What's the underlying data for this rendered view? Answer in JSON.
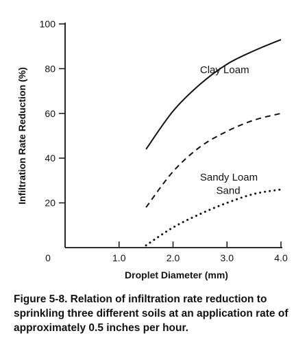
{
  "chart_data": {
    "type": "line",
    "xlabel": "Droplet Diameter (mm)",
    "ylabel": "Infiltration Rate Reduction (%)",
    "xlim": [
      0,
      4.0
    ],
    "ylim": [
      0,
      100
    ],
    "x_ticks": [
      {
        "value": 0,
        "label": "0"
      },
      {
        "value": 1.0,
        "label": "1.0"
      },
      {
        "value": 2.0,
        "label": "2.0"
      },
      {
        "value": 3.0,
        "label": "3.0"
      },
      {
        "value": 4.0,
        "label": "4.0"
      }
    ],
    "y_ticks": [
      {
        "value": 20,
        "label": "20"
      },
      {
        "value": 40,
        "label": "40"
      },
      {
        "value": 60,
        "label": "60"
      },
      {
        "value": 80,
        "label": "80"
      },
      {
        "value": 100,
        "label": "100"
      }
    ],
    "grid": false,
    "legend": "none",
    "series": [
      {
        "name": "Clay Loam",
        "style": "solid",
        "x": [
          1.5,
          2.0,
          2.5,
          3.0,
          3.5,
          4.0
        ],
        "y": [
          44,
          61,
          73,
          82,
          88,
          93
        ]
      },
      {
        "name": "Sandy Loam",
        "style": "dashed",
        "x": [
          1.5,
          2.0,
          2.5,
          3.0,
          3.5,
          4.0
        ],
        "y": [
          18,
          34,
          45,
          52,
          57,
          60
        ]
      },
      {
        "name": "Sand",
        "style": "dotted",
        "x": [
          1.5,
          2.0,
          2.5,
          3.0,
          3.5,
          4.0
        ],
        "y": [
          1,
          9,
          15,
          20,
          24,
          26
        ]
      }
    ],
    "series_labels": [
      {
        "text": "Clay Loam",
        "x": 2.5,
        "y": 78
      },
      {
        "text": "Sandy Loam",
        "x": 2.5,
        "y": 30
      },
      {
        "text": "Sand",
        "x": 2.8,
        "y": 24
      }
    ],
    "line_color": "#111111"
  },
  "caption": "Figure 5-8.  Relation of infiltration rate reduction to sprinkling three different soils at an application rate of approximately 0.5 inches per hour."
}
